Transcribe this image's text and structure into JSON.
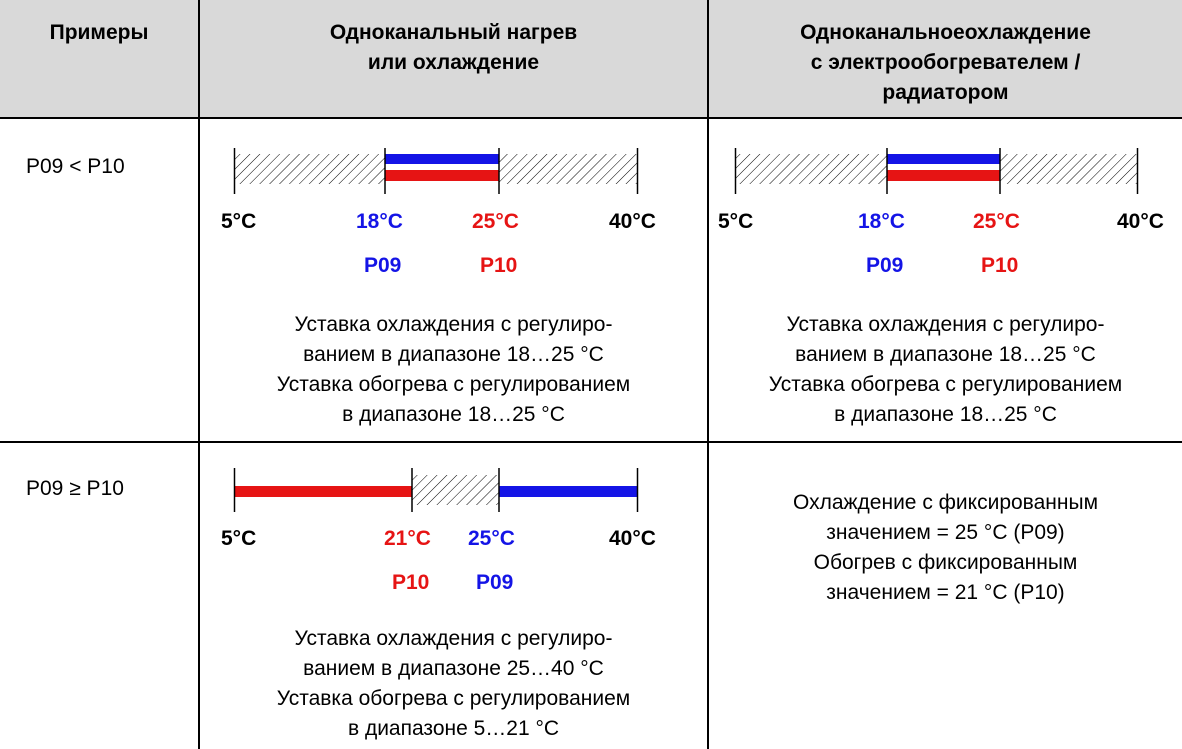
{
  "header": {
    "col1": "Примеры",
    "col2": [
      "Одноканальный нагрев",
      "или охлаждение"
    ],
    "col3": [
      "Одноканальноеохлаждение",
      "с электрообогревателем /",
      "радиатором"
    ]
  },
  "rows": [
    {
      "label": "P09 < P10",
      "col2": {
        "ticks": [
          "5°C",
          "18°C",
          "25°C",
          "40°C"
        ],
        "params": [
          "P09",
          "P10"
        ],
        "desc": [
          "Уставка охлаждения с регулиро-",
          "ванием в диапазоне 18…25 °C",
          "Уставка обогрева с регулированием",
          "в диапазоне 18…25 °C"
        ]
      },
      "col3": {
        "ticks": [
          "5°C",
          "18°C",
          "25°C",
          "40°C"
        ],
        "params": [
          "P09",
          "P10"
        ],
        "desc": [
          "Уставка охлаждения с регулиро-",
          "ванием в диапазоне 18…25 °C",
          "Уставка обогрева с регулированием",
          "в диапазоне 18…25 °C"
        ]
      }
    },
    {
      "label": "P09 ≥ P10",
      "col2": {
        "ticks": [
          "5°C",
          "21°C",
          "25°C",
          "40°C"
        ],
        "params": [
          "P10",
          "P09"
        ],
        "desc": [
          "Уставка охлаждения с регулиро-",
          "ванием в диапазоне 25…40 °C",
          "Уставка обогрева с регулированием",
          "в диапазоне 5…21 °C"
        ]
      },
      "col3": {
        "desc": [
          "Охлаждение с фиксированным",
          "значением = 25 °C (P09)",
          "Обогрев с фиксированным",
          "значением = 21 °C (P10)"
        ]
      }
    }
  ],
  "colors": {
    "heating": "#e61414",
    "cooling": "#1414e6",
    "header_bg": "#d9d9d9"
  }
}
